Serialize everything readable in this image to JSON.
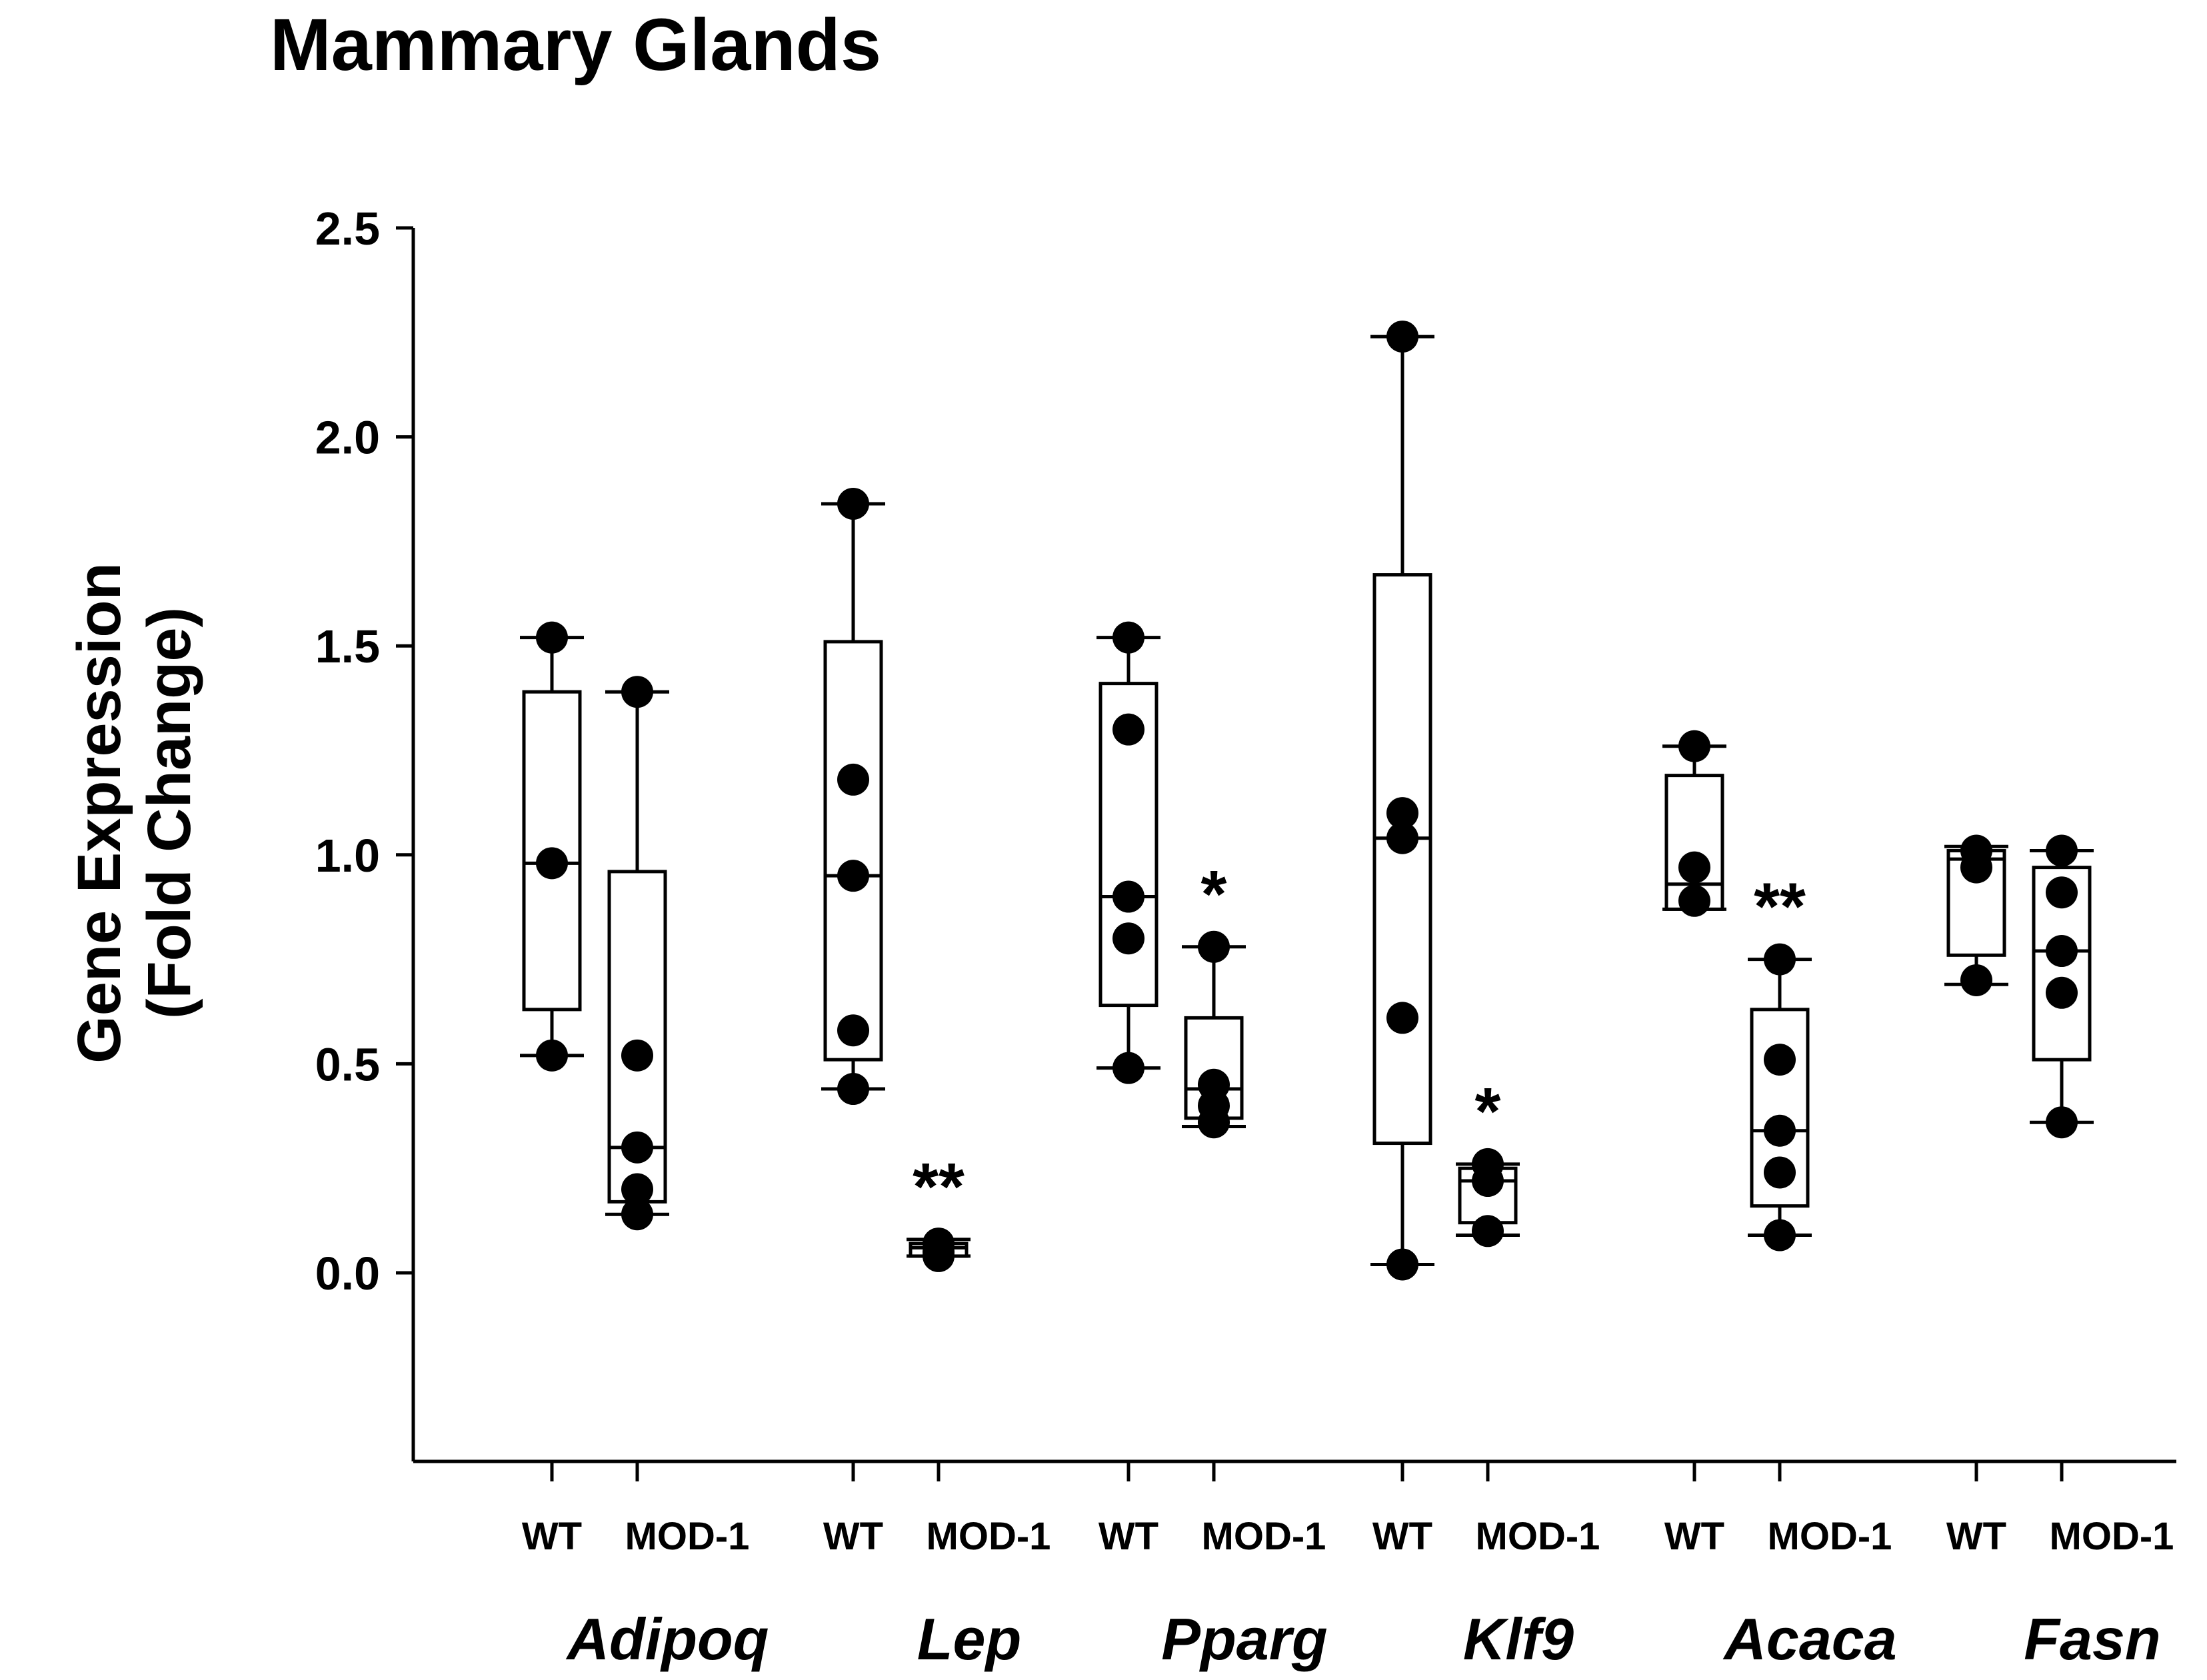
{
  "chart_data": {
    "type": "box",
    "title": "Mammary Glands",
    "ylabel_line1": "Gene Expression",
    "ylabel_line2": "(Fold Change)",
    "xlabel": "",
    "ylim": [
      -0.45,
      2.5
    ],
    "yticks": [
      0.0,
      0.5,
      1.0,
      1.5,
      2.0,
      2.5
    ],
    "ytick_labels": [
      "0.0",
      "0.5",
      "1.0",
      "1.5",
      "2.0",
      "2.5"
    ],
    "group_labels": [
      "WT",
      "MOD-1"
    ],
    "genes": [
      {
        "name": "Adipoq",
        "groups": [
          {
            "label": "WT",
            "whisker_low": 0.52,
            "q1": 0.63,
            "median": 0.98,
            "q3": 1.39,
            "whisker_high": 1.52,
            "points": [
              1.52,
              0.98,
              0.52
            ],
            "significance": ""
          },
          {
            "label": "MOD-1",
            "whisker_low": 0.14,
            "q1": 0.17,
            "median": 0.3,
            "q3": 0.96,
            "whisker_high": 1.39,
            "points": [
              1.39,
              0.52,
              0.3,
              0.2,
              0.14
            ],
            "significance": ""
          }
        ]
      },
      {
        "name": "Lep",
        "groups": [
          {
            "label": "WT",
            "whisker_low": 0.44,
            "q1": 0.51,
            "median": 0.95,
            "q3": 1.51,
            "whisker_high": 1.84,
            "points": [
              1.84,
              1.18,
              0.95,
              0.58,
              0.44
            ],
            "significance": ""
          },
          {
            "label": "MOD-1",
            "whisker_low": 0.04,
            "q1": 0.04,
            "median": 0.06,
            "q3": 0.07,
            "whisker_high": 0.08,
            "points": [
              0.07,
              0.05,
              0.04
            ],
            "significance": "**"
          }
        ]
      },
      {
        "name": "Pparg",
        "groups": [
          {
            "label": "WT",
            "whisker_low": 0.49,
            "q1": 0.64,
            "median": 0.9,
            "q3": 1.41,
            "whisker_high": 1.52,
            "points": [
              1.52,
              1.3,
              0.9,
              0.8,
              0.49
            ],
            "significance": ""
          },
          {
            "label": "MOD-1",
            "whisker_low": 0.35,
            "q1": 0.37,
            "median": 0.44,
            "q3": 0.61,
            "whisker_high": 0.78,
            "points": [
              0.78,
              0.45,
              0.4,
              0.36
            ],
            "significance": "*"
          }
        ]
      },
      {
        "name": "Klf9",
        "groups": [
          {
            "label": "WT",
            "whisker_low": 0.02,
            "q1": 0.31,
            "median": 1.04,
            "q3": 1.67,
            "whisker_high": 2.24,
            "points": [
              2.24,
              1.1,
              1.04,
              0.61,
              0.02
            ],
            "significance": ""
          },
          {
            "label": "MOD-1",
            "whisker_low": 0.09,
            "q1": 0.12,
            "median": 0.22,
            "q3": 0.25,
            "whisker_high": 0.26,
            "points": [
              0.26,
              0.22,
              0.1
            ],
            "significance": "*"
          }
        ]
      },
      {
        "name": "Acaca",
        "groups": [
          {
            "label": "WT",
            "whisker_low": 0.87,
            "q1": 0.87,
            "median": 0.93,
            "q3": 1.19,
            "whisker_high": 1.26,
            "points": [
              1.26,
              0.97,
              0.89
            ],
            "significance": ""
          },
          {
            "label": "MOD-1",
            "whisker_low": 0.09,
            "q1": 0.16,
            "median": 0.34,
            "q3": 0.63,
            "whisker_high": 0.75,
            "points": [
              0.75,
              0.51,
              0.34,
              0.24,
              0.09
            ],
            "significance": "**"
          }
        ]
      },
      {
        "name": "Fasn",
        "groups": [
          {
            "label": "WT",
            "whisker_low": 0.69,
            "q1": 0.76,
            "median": 0.99,
            "q3": 1.01,
            "whisker_high": 1.02,
            "points": [
              1.01,
              0.97,
              0.7
            ],
            "significance": ""
          },
          {
            "label": "MOD-1",
            "whisker_low": 0.36,
            "q1": 0.51,
            "median": 0.77,
            "q3": 0.97,
            "whisker_high": 1.01,
            "points": [
              1.01,
              0.91,
              0.77,
              0.67,
              0.36
            ],
            "significance": ""
          }
        ]
      }
    ]
  }
}
